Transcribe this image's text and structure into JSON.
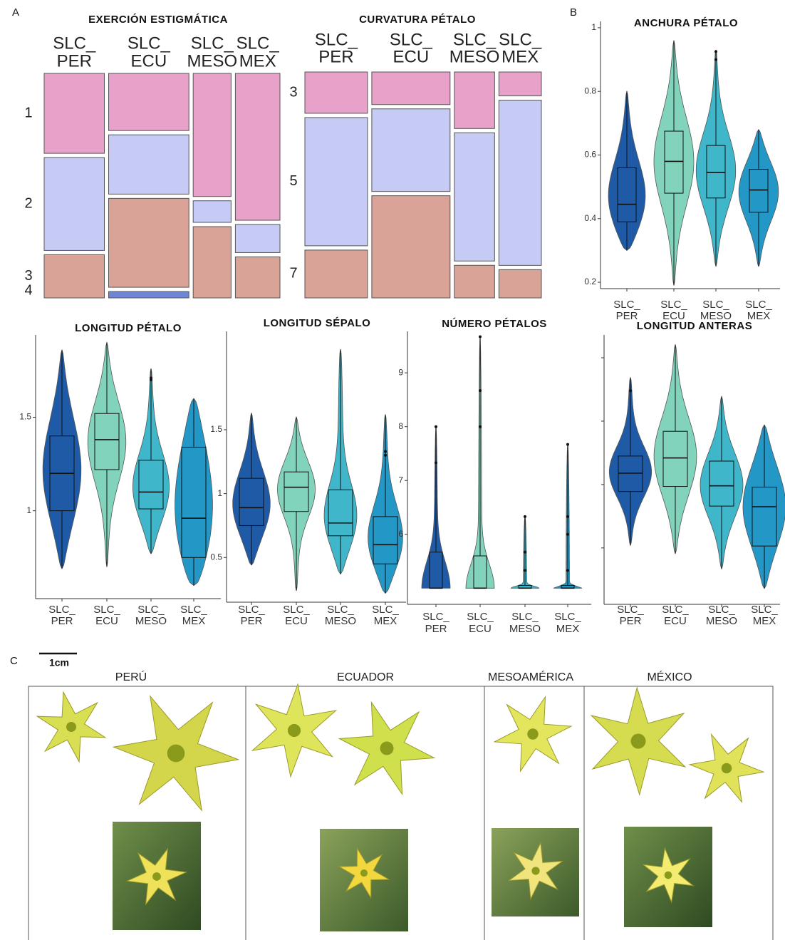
{
  "panel_labels": [
    "A",
    "B",
    "C"
  ],
  "photo_panel": {
    "scale_bar": "1cm",
    "regions": [
      "PERÚ",
      "ECUADOR",
      "MESOAMÉRICA",
      "MÉXICO"
    ]
  },
  "chart_data": [
    {
      "type": "mosaic",
      "title": "EXERCIÓN ESTIGMÁTICA",
      "categories": [
        [
          "SLC_",
          "PER"
        ],
        [
          "SLC_",
          "ECU"
        ],
        [
          "SLC_",
          "MESO"
        ],
        [
          "SLC_",
          "MEX"
        ]
      ],
      "widths": [
        27,
        36,
        17,
        20
      ],
      "series": [
        {
          "name": "1",
          "color": "#e8a2c9",
          "values": [
            37,
            27,
            57,
            68
          ]
        },
        {
          "name": "2",
          "color": "#c6cbf6",
          "values": [
            43,
            28,
            10,
            13
          ]
        },
        {
          "name": "3",
          "color": "#d9a398",
          "values": [
            20,
            42,
            33,
            19
          ]
        },
        {
          "name": "4",
          "color": "#6d86d6",
          "values": [
            0,
            3,
            0,
            0
          ]
        }
      ]
    },
    {
      "type": "mosaic",
      "title": "CURVATURA PÉTALO",
      "categories": [
        [
          "SLC_",
          "PER"
        ],
        [
          "SLC_",
          "ECU"
        ],
        [
          "SLC_",
          "MESO"
        ],
        [
          "SLC_",
          "MEX"
        ]
      ],
      "widths": [
        28,
        35,
        18,
        19
      ],
      "series": [
        {
          "name": "3",
          "color": "#e8a2c9",
          "values": [
            19,
            15,
            26,
            11
          ]
        },
        {
          "name": "5",
          "color": "#c6cbf6",
          "values": [
            59,
            38,
            59,
            76
          ]
        },
        {
          "name": "7",
          "color": "#d9a398",
          "values": [
            22,
            47,
            15,
            13
          ]
        }
      ]
    },
    {
      "type": "violin",
      "title": "ANCHURA PÉTALO",
      "categories": [
        [
          "SLC_",
          "PER"
        ],
        [
          "SLC_",
          "ECU"
        ],
        [
          "SLC_",
          "MESO"
        ],
        [
          "SLC_",
          "MEX"
        ]
      ],
      "colors": [
        "#1f5aa6",
        "#82d3bb",
        "#3fb6c9",
        "#2397c6"
      ],
      "ylim": [
        0.18,
        1.02
      ],
      "yticks": [
        0.2,
        0.4,
        0.6,
        0.8,
        1
      ],
      "stats": [
        {
          "min": 0.3,
          "q1": 0.39,
          "median": 0.445,
          "q3": 0.56,
          "max": 0.8,
          "outliers": []
        },
        {
          "min": 0.19,
          "q1": 0.48,
          "median": 0.58,
          "q3": 0.675,
          "max": 0.96,
          "outliers": []
        },
        {
          "min": 0.25,
          "q1": 0.465,
          "median": 0.545,
          "q3": 0.63,
          "max": 0.93,
          "outliers": [
            0.9,
            0.925
          ]
        },
        {
          "min": 0.25,
          "q1": 0.42,
          "median": 0.49,
          "q3": 0.555,
          "max": 0.68,
          "outliers": []
        }
      ]
    },
    {
      "type": "violin",
      "title": "LONGITUD PÉTALO",
      "categories": [
        [
          "SLC_",
          "PER"
        ],
        [
          "SLC_",
          "ECU"
        ],
        [
          "SLC_",
          "MESO"
        ],
        [
          "SLC_",
          "MEX"
        ]
      ],
      "colors": [
        "#1f5aa6",
        "#82d3bb",
        "#3fb6c9",
        "#2397c6"
      ],
      "ylim": [
        0.53,
        1.94
      ],
      "yticks": [
        1,
        1.5
      ],
      "stats": [
        {
          "min": 0.69,
          "q1": 1.0,
          "median": 1.2,
          "q3": 1.4,
          "max": 1.86,
          "outliers": []
        },
        {
          "min": 0.7,
          "q1": 1.22,
          "median": 1.38,
          "q3": 1.52,
          "max": 1.9,
          "outliers": []
        },
        {
          "min": 0.77,
          "q1": 1.01,
          "median": 1.1,
          "q3": 1.27,
          "max": 1.76,
          "outliers": [
            1.7,
            1.71
          ]
        },
        {
          "min": 0.6,
          "q1": 0.75,
          "median": 0.96,
          "q3": 1.34,
          "max": 1.6,
          "outliers": []
        }
      ]
    },
    {
      "type": "violin",
      "title": "LONGITUD SÉPALO",
      "categories": [
        [
          "SLC_",
          "PER"
        ],
        [
          "SLC_",
          "ECU"
        ],
        [
          "SLC_",
          "MESO"
        ],
        [
          "SLC_",
          "MEX"
        ]
      ],
      "colors": [
        "#1f5aa6",
        "#82d3bb",
        "#3fb6c9",
        "#2397c6"
      ],
      "ylim": [
        0.15,
        2.27
      ],
      "yticks": [
        0.5,
        1,
        1.5
      ],
      "stats": [
        {
          "min": 0.44,
          "q1": 0.75,
          "median": 0.89,
          "q3": 1.12,
          "max": 1.63,
          "outliers": []
        },
        {
          "min": 0.24,
          "q1": 0.86,
          "median": 1.05,
          "q3": 1.17,
          "max": 1.6,
          "outliers": []
        },
        {
          "min": 0.37,
          "q1": 0.67,
          "median": 0.77,
          "q3": 1.03,
          "max": 2.13,
          "outliers": []
        },
        {
          "min": 0.22,
          "q1": 0.45,
          "median": 0.6,
          "q3": 0.82,
          "max": 1.62,
          "outliers": [
            1.3,
            1.33
          ]
        }
      ]
    },
    {
      "type": "violin",
      "title": "NÚMERO PÉTALOS",
      "categories": [
        [
          "SLC_",
          "PER"
        ],
        [
          "SLC_",
          "ECU"
        ],
        [
          "SLC_",
          "MESO"
        ],
        [
          "SLC_",
          "MEX"
        ]
      ],
      "colors": [
        "#1f5aa6",
        "#82d3bb",
        "#3fb6c9",
        "#2397c6"
      ],
      "ylim": [
        4.7,
        9.77
      ],
      "yticks": [
        6,
        7,
        8,
        9
      ],
      "stats": [
        {
          "min": 5,
          "q1": 5,
          "median": 5,
          "q3": 5.67,
          "max": 8,
          "outliers": [
            7.33,
            8
          ]
        },
        {
          "min": 5,
          "q1": 5,
          "median": 5,
          "q3": 5.6,
          "max": 9.67,
          "outliers": [
            8,
            8.67,
            9.67
          ]
        },
        {
          "min": 5,
          "q1": 5,
          "median": 5,
          "q3": 5.05,
          "max": 6.33,
          "outliers": [
            5.33,
            5.67,
            6.33
          ]
        },
        {
          "min": 5,
          "q1": 5,
          "median": 5,
          "q3": 5.05,
          "max": 7.67,
          "outliers": [
            5.33,
            6,
            6.33,
            7.67
          ]
        }
      ]
    },
    {
      "type": "violin",
      "title": "LONGITUD ANTERAS",
      "categories": [
        [
          "SLC_",
          "PER"
        ],
        [
          "SLC_",
          "ECU"
        ],
        [
          "SLC_",
          "MESO"
        ],
        [
          "SLC_",
          "MEX"
        ]
      ],
      "colors": [
        "#1f5aa6",
        "#82d3bb",
        "#3fb6c9",
        "#2397c6"
      ],
      "ylim": [
        0.11,
        4.36
      ],
      "yticks": [
        1,
        2,
        3,
        4
      ],
      "ytick_labels": false,
      "stats": [
        {
          "min": 1.04,
          "q1": 1.89,
          "median": 2.18,
          "q3": 2.45,
          "max": 3.69,
          "outliers": [
            3.48
          ]
        },
        {
          "min": 0.91,
          "q1": 1.97,
          "median": 2.42,
          "q3": 2.84,
          "max": 4.21,
          "outliers": []
        },
        {
          "min": 0.67,
          "q1": 1.66,
          "median": 1.98,
          "q3": 2.37,
          "max": 3.39,
          "outliers": []
        },
        {
          "min": 0.36,
          "q1": 1.03,
          "median": 1.65,
          "q3": 1.96,
          "max": 2.94,
          "outliers": []
        }
      ]
    }
  ]
}
